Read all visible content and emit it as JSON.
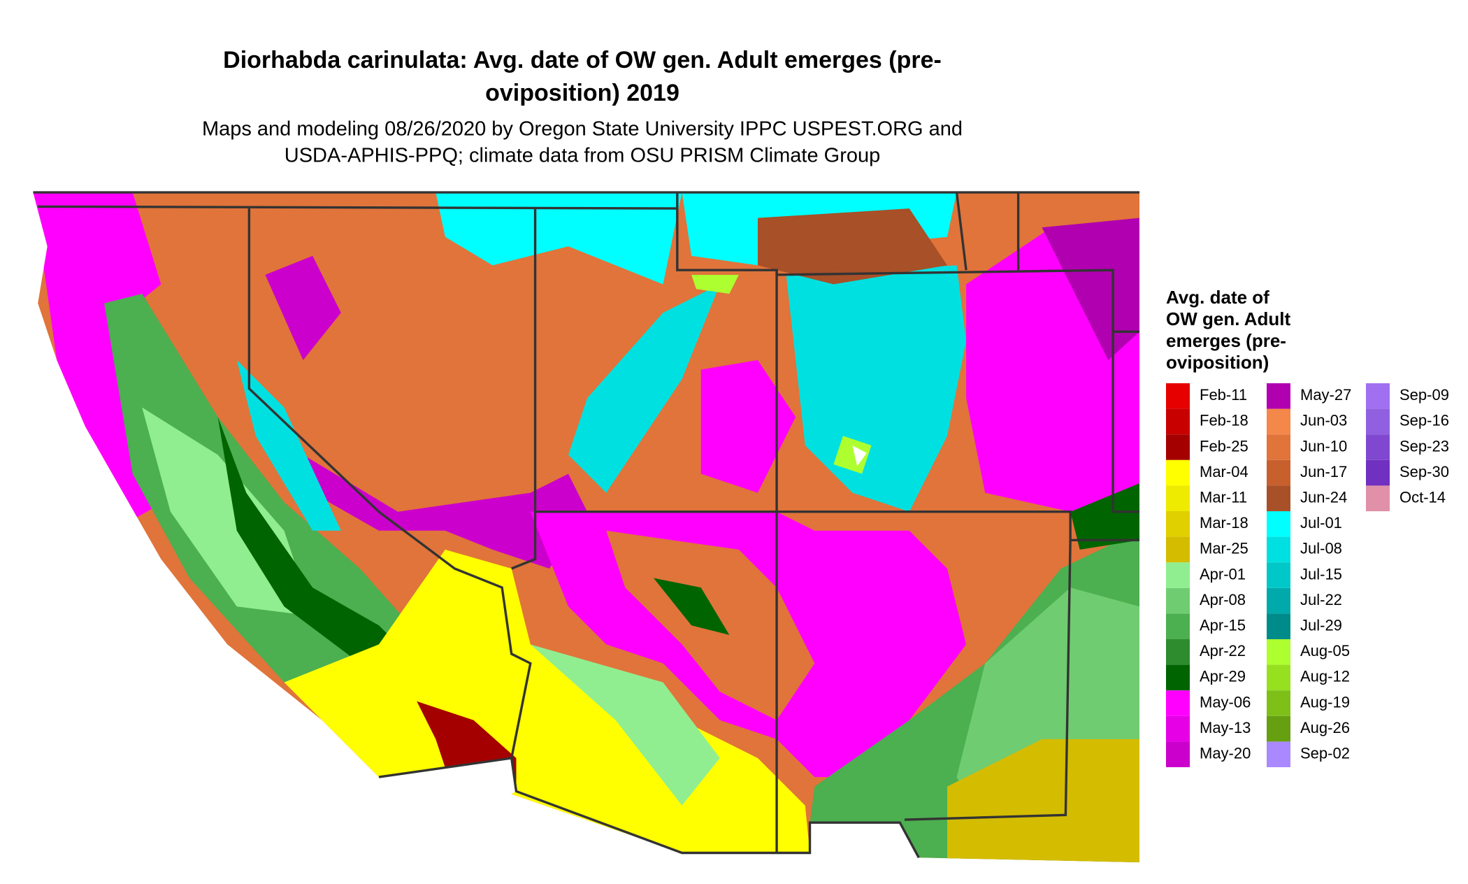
{
  "title_lines": [
    "Diorhabda carinulata: Avg. date of OW gen. Adult emerges (pre-",
    "oviposition) 2019"
  ],
  "subtitle_lines": [
    "Maps and modeling 08/26/2020 by Oregon State University IPPC USPEST.ORG and",
    "USDA-APHIS-PPQ; climate data from OSU PRISM Climate Group"
  ],
  "legend": {
    "title_lines": [
      "Avg. date of",
      "OW gen. Adult",
      "emerges (pre-",
      "oviposition)"
    ],
    "items": [
      {
        "label": "Feb-11",
        "color": "#e60000"
      },
      {
        "label": "Feb-18",
        "color": "#c80000"
      },
      {
        "label": "Feb-25",
        "color": "#a50000"
      },
      {
        "label": "Mar-04",
        "color": "#ffff00"
      },
      {
        "label": "Mar-11",
        "color": "#eeea00"
      },
      {
        "label": "Mar-18",
        "color": "#e0d000"
      },
      {
        "label": "Mar-25",
        "color": "#d4bc00"
      },
      {
        "label": "Apr-01",
        "color": "#90ee90"
      },
      {
        "label": "Apr-08",
        "color": "#70cc70"
      },
      {
        "label": "Apr-15",
        "color": "#4caf50"
      },
      {
        "label": "Apr-22",
        "color": "#2e8b2e"
      },
      {
        "label": "Apr-29",
        "color": "#006400"
      },
      {
        "label": "May-06",
        "color": "#ff00ff"
      },
      {
        "label": "May-13",
        "color": "#e600e6"
      },
      {
        "label": "May-20",
        "color": "#cc00cc"
      },
      {
        "label": "May-27",
        "color": "#b000b0"
      },
      {
        "label": "Jun-03",
        "color": "#f4884a"
      },
      {
        "label": "Jun-10",
        "color": "#e0743a"
      },
      {
        "label": "Jun-17",
        "color": "#c8602e"
      },
      {
        "label": "Jun-24",
        "color": "#a85028"
      },
      {
        "label": "Jul-01",
        "color": "#00ffff"
      },
      {
        "label": "Jul-08",
        "color": "#00e0e0"
      },
      {
        "label": "Jul-15",
        "color": "#00c8c8"
      },
      {
        "label": "Jul-22",
        "color": "#00aaaa"
      },
      {
        "label": "Jul-29",
        "color": "#008b8b"
      },
      {
        "label": "Aug-05",
        "color": "#adff2f"
      },
      {
        "label": "Aug-12",
        "color": "#96e020"
      },
      {
        "label": "Aug-19",
        "color": "#7ec018"
      },
      {
        "label": "Aug-26",
        "color": "#66a010"
      },
      {
        "label": "Sep-02",
        "color": "#aa88ff"
      },
      {
        "label": "Sep-09",
        "color": "#a070f0"
      },
      {
        "label": "Sep-16",
        "color": "#9060e0"
      },
      {
        "label": "Sep-23",
        "color": "#8048d0"
      },
      {
        "label": "Sep-30",
        "color": "#7030c0"
      },
      {
        "label": "Oct-14",
        "color": "#e090a8"
      }
    ]
  }
}
